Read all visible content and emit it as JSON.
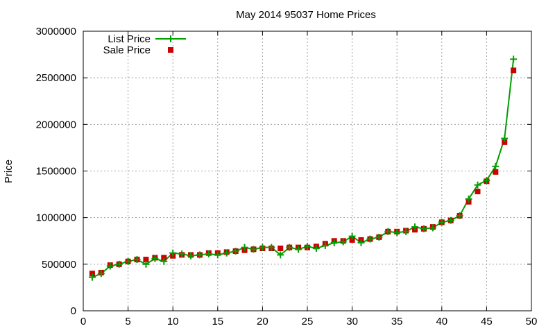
{
  "chart_data": {
    "type": "line",
    "title": "May 2014 95037 Home Prices",
    "xlabel": "",
    "ylabel": "Price",
    "xlim": [
      0,
      50
    ],
    "ylim": [
      0,
      3000000
    ],
    "xticks": [
      0,
      5,
      10,
      15,
      20,
      25,
      30,
      35,
      40,
      45,
      50
    ],
    "yticks": [
      0,
      500000,
      1000000,
      1500000,
      2000000,
      2500000,
      3000000
    ],
    "grid": true,
    "legend_position": "top-left",
    "x": [
      1,
      2,
      3,
      4,
      5,
      6,
      7,
      8,
      9,
      10,
      11,
      12,
      13,
      14,
      15,
      16,
      17,
      18,
      19,
      20,
      21,
      22,
      23,
      24,
      25,
      26,
      27,
      28,
      29,
      30,
      31,
      32,
      33,
      34,
      35,
      36,
      37,
      38,
      39,
      40,
      41,
      42,
      43,
      44,
      45,
      46,
      47,
      48
    ],
    "series": [
      {
        "name": "List Price",
        "style": "line+cross",
        "color": "#00a000",
        "values": [
          360000,
          400000,
          480000,
          500000,
          530000,
          550000,
          500000,
          560000,
          530000,
          620000,
          610000,
          590000,
          600000,
          610000,
          600000,
          620000,
          640000,
          680000,
          660000,
          680000,
          680000,
          600000,
          680000,
          660000,
          690000,
          670000,
          700000,
          730000,
          740000,
          800000,
          730000,
          770000,
          790000,
          850000,
          840000,
          850000,
          900000,
          880000,
          890000,
          950000,
          970000,
          1020000,
          1200000,
          1350000,
          1400000,
          1550000,
          1850000,
          2700000
        ]
      },
      {
        "name": "Sale Price",
        "style": "square-markers",
        "color": "#cc0000",
        "values": [
          400000,
          410000,
          490000,
          500000,
          530000,
          550000,
          550000,
          570000,
          570000,
          590000,
          600000,
          600000,
          600000,
          620000,
          620000,
          630000,
          640000,
          650000,
          660000,
          670000,
          670000,
          670000,
          680000,
          680000,
          680000,
          690000,
          720000,
          750000,
          750000,
          760000,
          760000,
          770000,
          790000,
          850000,
          850000,
          860000,
          870000,
          880000,
          900000,
          950000,
          970000,
          1020000,
          1170000,
          1280000,
          1390000,
          1490000,
          1810000,
          2580000
        ]
      }
    ]
  }
}
